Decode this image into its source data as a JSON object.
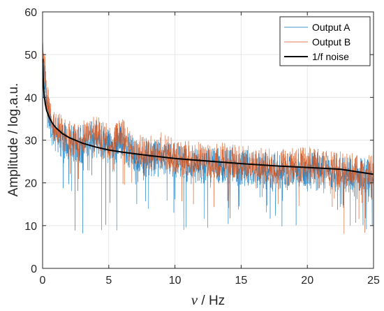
{
  "chart_data": {
    "type": "line",
    "xlabel_symbol": "ν",
    "xlabel_unit": " / Hz",
    "ylabel": "Amplitude / log.a.u.",
    "xlim": [
      0,
      25
    ],
    "ylim": [
      0,
      60
    ],
    "xticks": [
      0,
      5,
      10,
      15,
      20,
      25
    ],
    "yticks": [
      0,
      10,
      20,
      30,
      40,
      50,
      60
    ],
    "grid": true,
    "legend_position": "top-right",
    "series": [
      {
        "name": "Output A",
        "color": "#0072BD",
        "style": "noisy-thin",
        "trend_x": [
          0.02,
          0.3,
          0.6,
          1.0,
          2.0,
          3.0,
          4.0,
          5.0,
          6.0,
          7.0,
          8.0,
          9.0,
          10.0,
          12.0,
          14.0,
          16.0,
          18.0,
          20.0,
          22.0,
          24.0,
          25.0
        ],
        "trend_y": [
          52,
          40,
          35,
          33,
          30.5,
          30.5,
          32,
          29.5,
          31,
          27.5,
          27,
          28,
          26.5,
          25.5,
          25.5,
          24.5,
          24,
          24.5,
          23.5,
          23,
          22.5
        ],
        "spread_low": 6,
        "spread_high": 3,
        "min_y": 7.8
      },
      {
        "name": "Output B",
        "color": "#D95319",
        "style": "noisy-thin",
        "trend_x": [
          0.02,
          0.3,
          0.6,
          1.0,
          2.0,
          3.0,
          4.0,
          5.0,
          6.0,
          7.0,
          8.0,
          9.0,
          10.0,
          12.0,
          14.0,
          16.0,
          18.0,
          20.0,
          22.0,
          24.0,
          25.0
        ],
        "trend_y": [
          55,
          41,
          36,
          33.5,
          31,
          31,
          33,
          30,
          32,
          28,
          27.5,
          28.5,
          27,
          26,
          26,
          25,
          24.5,
          25,
          24,
          23.5,
          23
        ],
        "spread_low": 5,
        "spread_high": 3.5,
        "min_y": 7.0
      },
      {
        "name": "1/f noise",
        "color": "#000000",
        "style": "fit",
        "x": [
          0.02,
          0.05,
          0.1,
          0.2,
          0.3,
          0.5,
          0.75,
          1,
          1.5,
          2,
          3,
          4,
          5,
          6,
          8,
          10,
          12.5,
          15,
          17.5,
          20,
          22.5,
          25
        ],
        "y": [
          49.0,
          44.3,
          41.2,
          38.5,
          37.0,
          35.3,
          33.9,
          32.9,
          31.5,
          30.6,
          29.3,
          28.4,
          27.7,
          27.2,
          26.4,
          25.7,
          25.1,
          24.5,
          24.0,
          23.6,
          23.2,
          22.0
        ]
      }
    ]
  }
}
